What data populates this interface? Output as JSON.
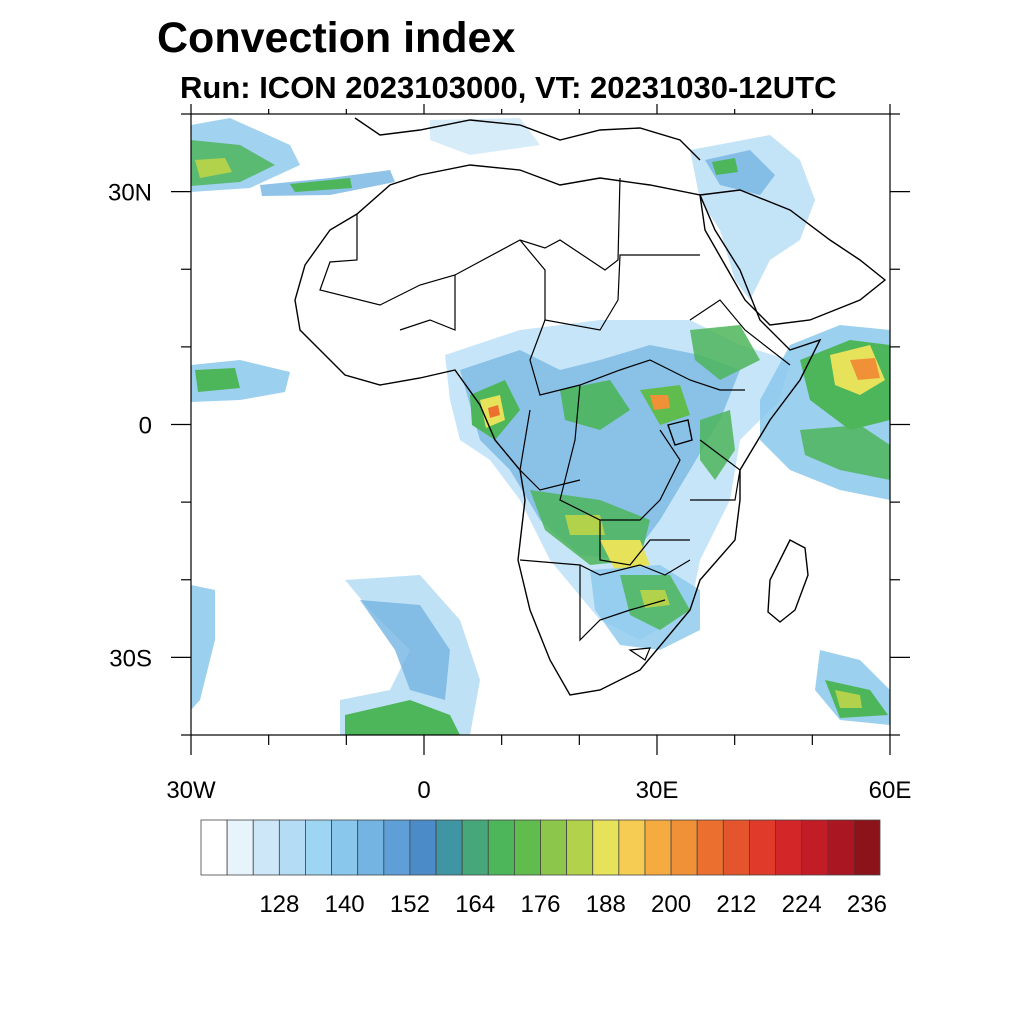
{
  "title": "Convection index",
  "subtitle": "Run: ICON 2023103000,  VT: 20231030-12UTC",
  "map": {
    "lon_range": [
      -30,
      60
    ],
    "lat_range": [
      -40,
      40
    ],
    "lat_labels": [
      {
        "text": "30N",
        "lat": 30
      },
      {
        "text": "0",
        "lat": 0
      },
      {
        "text": "30S",
        "lat": -30
      }
    ],
    "lon_labels": [
      {
        "text": "30W",
        "lon": -30
      },
      {
        "text": "0",
        "lon": 0
      },
      {
        "text": "30E",
        "lon": 30
      },
      {
        "text": "60E",
        "lon": 60
      }
    ]
  },
  "colorbar": {
    "labels": [
      "128",
      "140",
      "152",
      "164",
      "176",
      "188",
      "200",
      "212",
      "224",
      "236"
    ],
    "colors": [
      "#ffffff",
      "#e8f4fc",
      "#cde7f8",
      "#b4dcf5",
      "#9ed5f3",
      "#89c8ec",
      "#74b4e2",
      "#5d9fd6",
      "#4b8cc8",
      "#3f95a3",
      "#46a87a",
      "#4db55a",
      "#61bc4e",
      "#8cc74c",
      "#b3d24c",
      "#e6e35a",
      "#f6cc52",
      "#f5ab40",
      "#f09138",
      "#eb7030",
      "#e5552d",
      "#df3a2a",
      "#d22628",
      "#c21d27",
      "#aa1722",
      "#8d131b"
    ]
  }
}
